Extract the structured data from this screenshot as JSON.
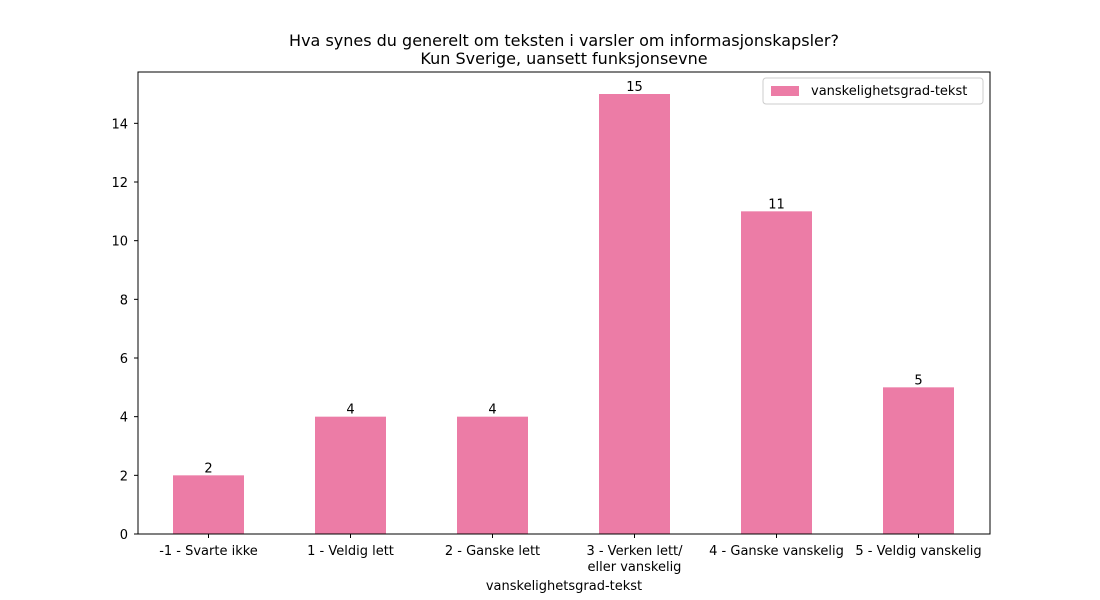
{
  "chart_data": {
    "type": "bar",
    "title": "Hva synes du generelt om teksten i varsler om informasjonskapsler?",
    "subtitle": "Kun Sverige, uansett funksjonsevne",
    "xlabel": "vanskelighetsgrad-tekst",
    "ylabel": "",
    "categories": [
      "-1 - Svarte ikke",
      "1 - Veldig lett",
      "2 - Ganske lett",
      "3 - Verken lett/\neller vanskelig",
      "4 - Ganske vanskelig",
      "5 - Veldig vanskelig"
    ],
    "series": [
      {
        "name": "vanskelighetsgrad-tekst",
        "values": [
          2,
          4,
          4,
          15,
          11,
          5
        ],
        "color": "#ec7ca6"
      }
    ],
    "data_labels": [
      "2",
      "4",
      "4",
      "15",
      "11",
      "5"
    ],
    "yticks": [
      "0",
      "2",
      "4",
      "6",
      "8",
      "10",
      "12",
      "14"
    ],
    "ylim": [
      0,
      15.75
    ],
    "grid": false,
    "legend_position": "top-right"
  }
}
